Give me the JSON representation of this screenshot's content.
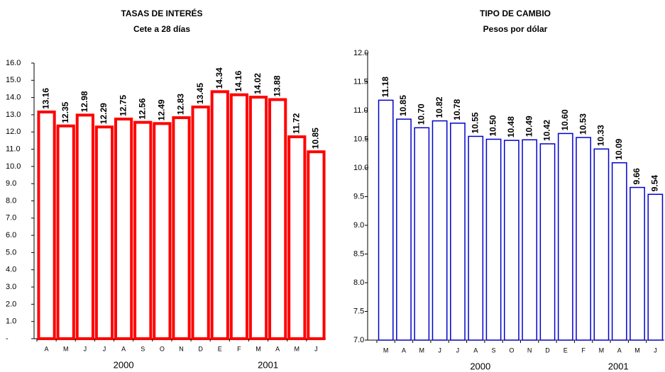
{
  "chart_data": [
    {
      "type": "bar",
      "title": "TASAS DE INTERÉS",
      "subtitle": "Cete a 28 días",
      "categories": [
        "A",
        "M",
        "J",
        "J",
        "A",
        "S",
        "O",
        "N",
        "D",
        "E",
        "F",
        "M",
        "A",
        "M",
        "J"
      ],
      "values": [
        13.16,
        12.35,
        12.98,
        12.29,
        12.75,
        12.56,
        12.49,
        12.83,
        13.45,
        14.34,
        14.16,
        14.02,
        13.88,
        11.72,
        10.85
      ],
      "x_group_labels": [
        "2000",
        "2001"
      ],
      "color": "#ff0000",
      "ylim": [
        0,
        16
      ],
      "yticks": [
        {
          "value": 0,
          "label": "-"
        },
        {
          "value": 1,
          "label": "1.0"
        },
        {
          "value": 2,
          "label": "2.0"
        },
        {
          "value": 3,
          "label": "3.0"
        },
        {
          "value": 4,
          "label": "4.0"
        },
        {
          "value": 5,
          "label": "5.0"
        },
        {
          "value": 6,
          "label": "6.0"
        },
        {
          "value": 7,
          "label": "7.0"
        },
        {
          "value": 8,
          "label": "8.0"
        },
        {
          "value": 9,
          "label": "9.0"
        },
        {
          "value": 10,
          "label": "10.0"
        },
        {
          "value": 11,
          "label": "11.0"
        },
        {
          "value": 12,
          "label": "12.0"
        },
        {
          "value": 13,
          "label": "13.0"
        },
        {
          "value": 14,
          "label": "14.0"
        },
        {
          "value": 15,
          "label": "15.0"
        },
        {
          "value": 16,
          "label": "16.0"
        }
      ]
    },
    {
      "type": "bar",
      "title": "TIPO DE CAMBIO",
      "subtitle": "Pesos por dólar",
      "categories": [
        "M",
        "A",
        "M",
        "J",
        "J",
        "A",
        "S",
        "O",
        "N",
        "D",
        "E",
        "F",
        "M",
        "A",
        "M",
        "J"
      ],
      "values": [
        11.18,
        10.85,
        10.7,
        10.82,
        10.78,
        10.55,
        10.5,
        10.48,
        10.49,
        10.42,
        10.6,
        10.53,
        10.33,
        10.09,
        9.66,
        9.54
      ],
      "value_labels": [
        "11.18",
        "10.85",
        "10.70",
        "10.82",
        "10.78",
        "10.55",
        "10.50",
        "10.48",
        "10.49",
        "10.42",
        "10.60",
        "10.53",
        "10.33",
        "10.09",
        "9.66",
        "9.54"
      ],
      "x_group_labels": [
        "2000",
        "2001"
      ],
      "color": "#0000cc",
      "ylim": [
        7,
        12
      ],
      "yticks": [
        {
          "value": 7,
          "label": "7.0"
        },
        {
          "value": 7.5,
          "label": "7.5"
        },
        {
          "value": 8,
          "label": "8.0"
        },
        {
          "value": 8.5,
          "label": "8.5"
        },
        {
          "value": 9,
          "label": "9.0"
        },
        {
          "value": 9.5,
          "label": "9.5"
        },
        {
          "value": 10,
          "label": "10.0"
        },
        {
          "value": 10.5,
          "label": "10.5"
        },
        {
          "value": 11,
          "label": "11.0"
        },
        {
          "value": 11.5,
          "label": "11.5"
        },
        {
          "value": 12,
          "label": "12.0"
        }
      ]
    }
  ]
}
